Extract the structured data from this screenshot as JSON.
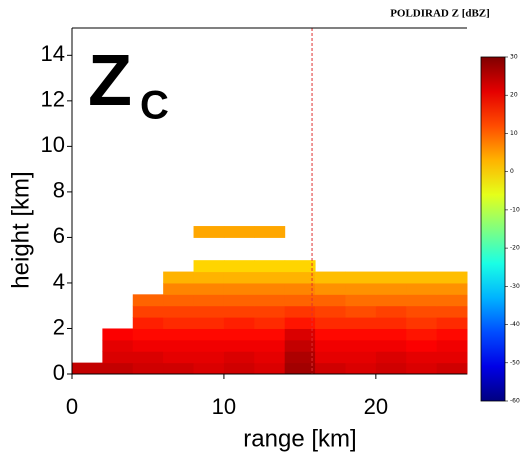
{
  "chart_data": {
    "type": "heatmap",
    "title": "POLDIRAD Z [dBZ]",
    "annotation": "Z",
    "annotation_subscript": "C",
    "xlabel": "range [km]",
    "ylabel": "height [km]",
    "xlim": [
      0,
      26
    ],
    "ylim": [
      0,
      15.2
    ],
    "xticks": [
      0,
      10,
      20
    ],
    "yticks": [
      0,
      2,
      4,
      6,
      8,
      10,
      12,
      14
    ],
    "x_edges": [
      0,
      2,
      4,
      6,
      8,
      10,
      12,
      14,
      16,
      18,
      20,
      22,
      24,
      26
    ],
    "y_edges": [
      0,
      0.5,
      1,
      1.5,
      2,
      2.5,
      3,
      3.5,
      4,
      4.5,
      5,
      5.5,
      6,
      6.5
    ],
    "values": [
      [
        24,
        24,
        23,
        23,
        22,
        23,
        22,
        27,
        23,
        22,
        23,
        22,
        23
      ],
      [
        null,
        22,
        22,
        21,
        21,
        22,
        21,
        26,
        21,
        21,
        22,
        21,
        21
      ],
      [
        null,
        21,
        20,
        20,
        20,
        20,
        20,
        24,
        20,
        20,
        20,
        19,
        20
      ],
      [
        null,
        19,
        18,
        18,
        18,
        18,
        18,
        22,
        18,
        18,
        18,
        17,
        18
      ],
      [
        null,
        null,
        16,
        15,
        15,
        16,
        15,
        17,
        15,
        15,
        15,
        14,
        15
      ],
      [
        null,
        null,
        13,
        13,
        13,
        13,
        13,
        14,
        13,
        12,
        13,
        12,
        12
      ],
      [
        null,
        null,
        10,
        10,
        10,
        10,
        10,
        10,
        10,
        9,
        9,
        9,
        9
      ],
      [
        null,
        null,
        null,
        7,
        7,
        7,
        7,
        7,
        6,
        6,
        6,
        6,
        6
      ],
      [
        null,
        null,
        null,
        3,
        3,
        3,
        3,
        3,
        2,
        2,
        2,
        2,
        2
      ],
      [
        null,
        null,
        null,
        null,
        0,
        0,
        0,
        0,
        null,
        null,
        null,
        null,
        null
      ],
      [
        null,
        null,
        null,
        null,
        null,
        null,
        null,
        null,
        null,
        null,
        null,
        null,
        null
      ],
      [
        null,
        null,
        null,
        null,
        null,
        null,
        null,
        null,
        null,
        null,
        null,
        null,
        null
      ],
      [
        null,
        null,
        null,
        null,
        4,
        4,
        4,
        null,
        null,
        null,
        null,
        null,
        null
      ]
    ],
    "colormap": "jet",
    "clim": [
      -60,
      30
    ],
    "cticks": [
      30,
      20,
      10,
      0,
      -10,
      -20,
      -30,
      -40,
      -50,
      -60
    ],
    "vline": 15.8,
    "vline_color": "#e03030"
  }
}
